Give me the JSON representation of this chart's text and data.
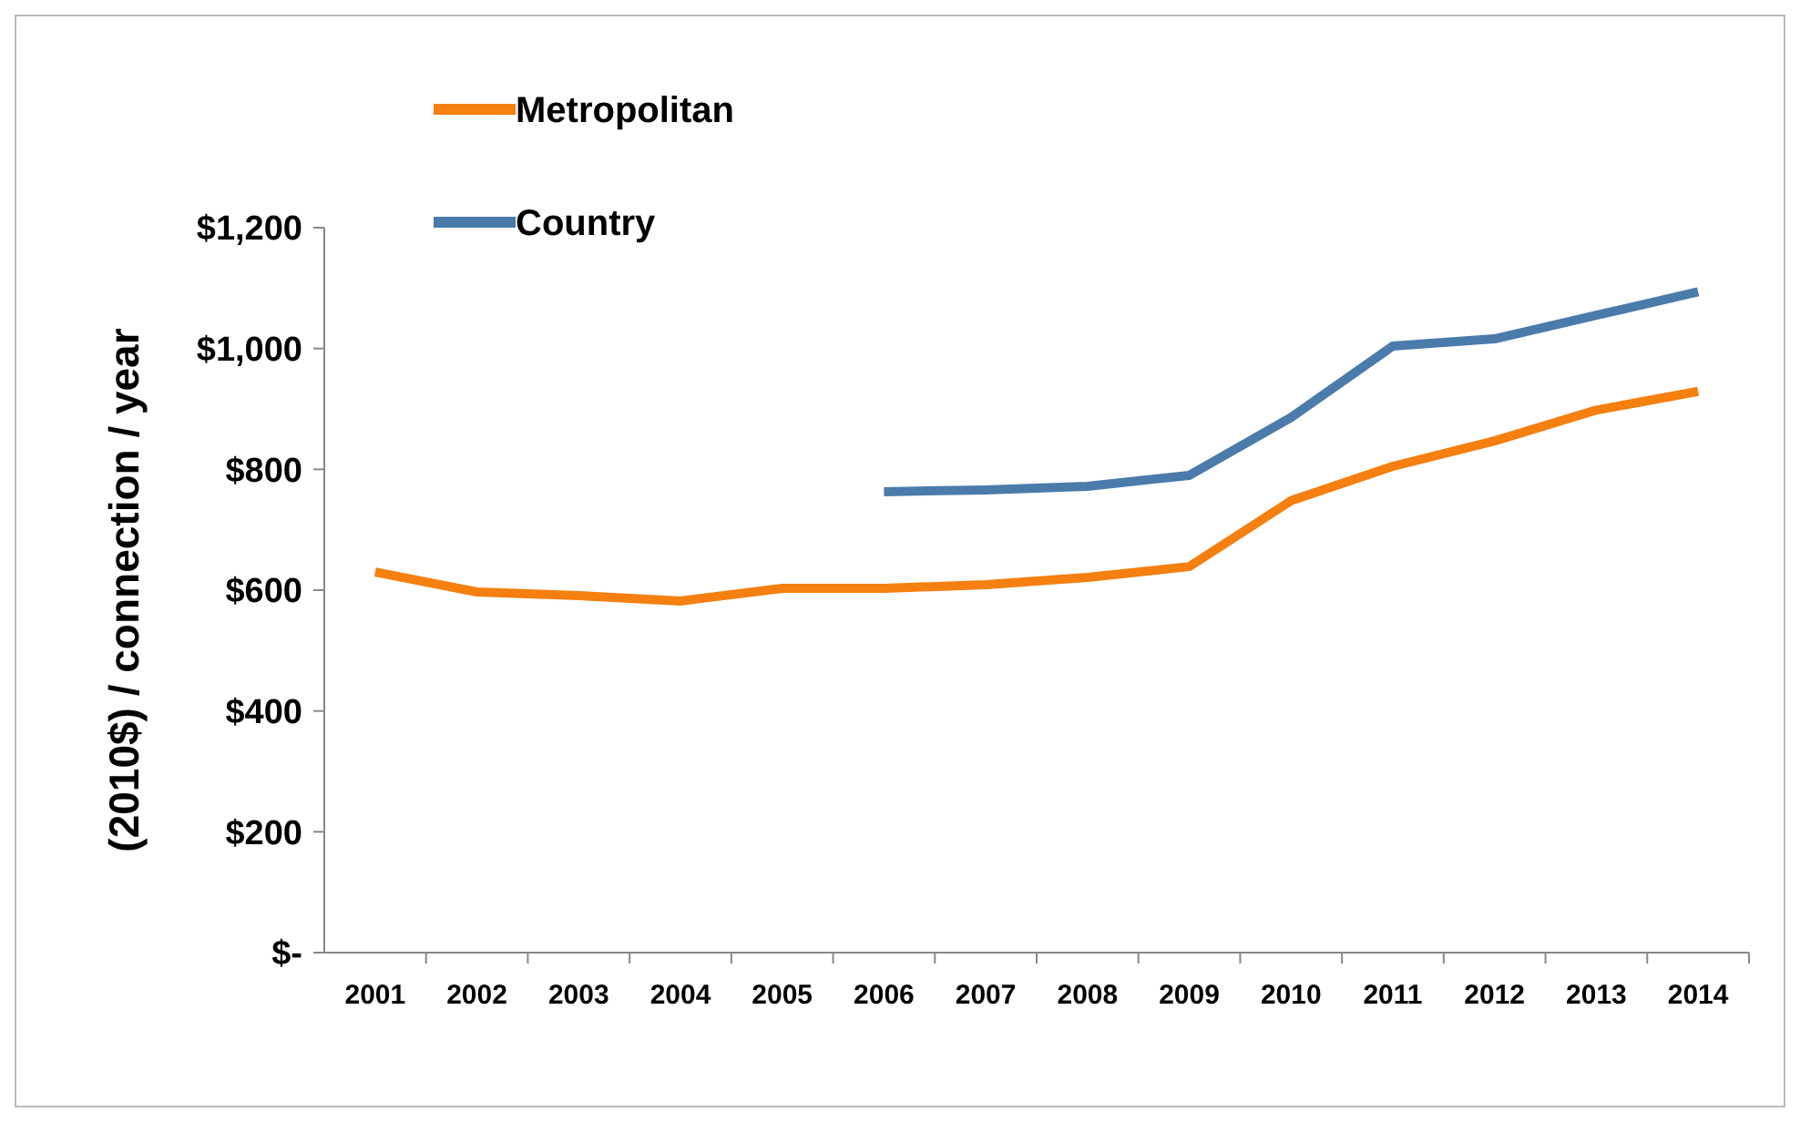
{
  "chart_data": {
    "type": "line",
    "ylabel": "(2010$) / connection / year",
    "categories": [
      "2001",
      "2002",
      "2003",
      "2004",
      "2005",
      "2006",
      "2007",
      "2008",
      "2009",
      "2010",
      "2011",
      "2012",
      "2013",
      "2014"
    ],
    "series": [
      {
        "name": "Metropolitan",
        "color": "#f57f0f",
        "values": [
          630,
          597,
          591,
          582,
          603,
          603,
          609,
          621,
          639,
          748,
          805,
          847,
          898,
          929
        ]
      },
      {
        "name": "Country",
        "color": "#4a7bab",
        "values": [
          null,
          null,
          null,
          null,
          null,
          763,
          766,
          772,
          790,
          886,
          1004,
          1016,
          1055,
          1094
        ]
      }
    ],
    "ylim": [
      0,
      1200
    ],
    "yticks": [
      {
        "value": 0,
        "label": "$-"
      },
      {
        "value": 200,
        "label": "$200"
      },
      {
        "value": 400,
        "label": "$400"
      },
      {
        "value": 600,
        "label": "$600"
      },
      {
        "value": 800,
        "label": "$800"
      },
      {
        "value": 1000,
        "label": "$1,000"
      },
      {
        "value": 1200,
        "label": "$1,200"
      }
    ],
    "legend": "top left",
    "grid": false,
    "marker": "none",
    "line_style": "solid"
  }
}
